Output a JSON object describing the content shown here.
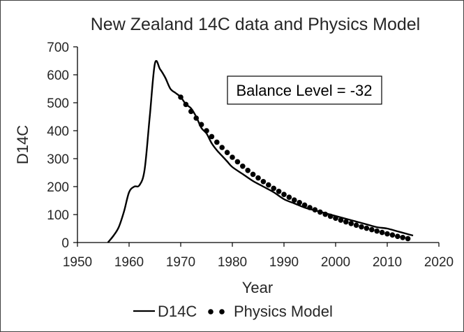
{
  "chart_data": {
    "type": "line",
    "title": "New Zealand 14C data and Physics Model",
    "xlabel": "Year",
    "ylabel": "D14C",
    "xlim": [
      1950,
      2020
    ],
    "ylim": [
      0,
      700
    ],
    "xticks": [
      1950,
      1960,
      1970,
      1980,
      1990,
      2000,
      2010,
      2020
    ],
    "yticks": [
      0,
      100,
      200,
      300,
      400,
      500,
      600,
      700
    ],
    "grid": false,
    "legend_position": "bottom",
    "annotation": "Balance Level = -32",
    "series": [
      {
        "name": "D14C",
        "style": "solid-line",
        "color": "#000000",
        "x": [
          1955.9,
          1957,
          1958,
          1959,
          1960,
          1961,
          1962,
          1963,
          1964,
          1965,
          1966,
          1967,
          1968,
          1969,
          1970,
          1971,
          1972,
          1973,
          1974,
          1975,
          1976,
          1977,
          1978,
          1979,
          1980,
          1982,
          1984,
          1986,
          1988,
          1990,
          1992,
          1994,
          1996,
          1998,
          2000,
          2002,
          2004,
          2006,
          2008,
          2010,
          2012,
          2014,
          2015
        ],
        "values": [
          0,
          25,
          55,
          110,
          180,
          200,
          205,
          260,
          450,
          640,
          620,
          590,
          550,
          535,
          520,
          495,
          480,
          450,
          410,
          390,
          355,
          330,
          310,
          290,
          270,
          245,
          220,
          200,
          180,
          155,
          140,
          125,
          115,
          105,
          95,
          85,
          75,
          65,
          55,
          50,
          40,
          30,
          25
        ]
      },
      {
        "name": "Physics Model",
        "style": "dotted",
        "color": "#000000",
        "x": [
          1970,
          1971,
          1972,
          1973,
          1974,
          1975,
          1976,
          1977,
          1978,
          1979,
          1980,
          1981,
          1982,
          1983,
          1984,
          1985,
          1986,
          1987,
          1988,
          1989,
          1990,
          1991,
          1992,
          1993,
          1994,
          1995,
          1996,
          1997,
          1998,
          1999,
          2000,
          2001,
          2002,
          2003,
          2004,
          2005,
          2006,
          2007,
          2008,
          2009,
          2010,
          2011,
          2012,
          2013,
          2014
        ],
        "values": [
          520,
          494,
          469,
          445,
          422,
          400,
          379,
          359,
          340,
          322,
          305,
          289,
          273,
          258,
          244,
          231,
          218,
          206,
          194,
          183,
          172,
          162,
          152,
          143,
          134,
          125,
          117,
          109,
          101,
          94,
          87,
          80,
          74,
          68,
          62,
          56,
          51,
          46,
          41,
          36,
          31,
          27,
          22,
          18,
          14
        ]
      }
    ]
  }
}
